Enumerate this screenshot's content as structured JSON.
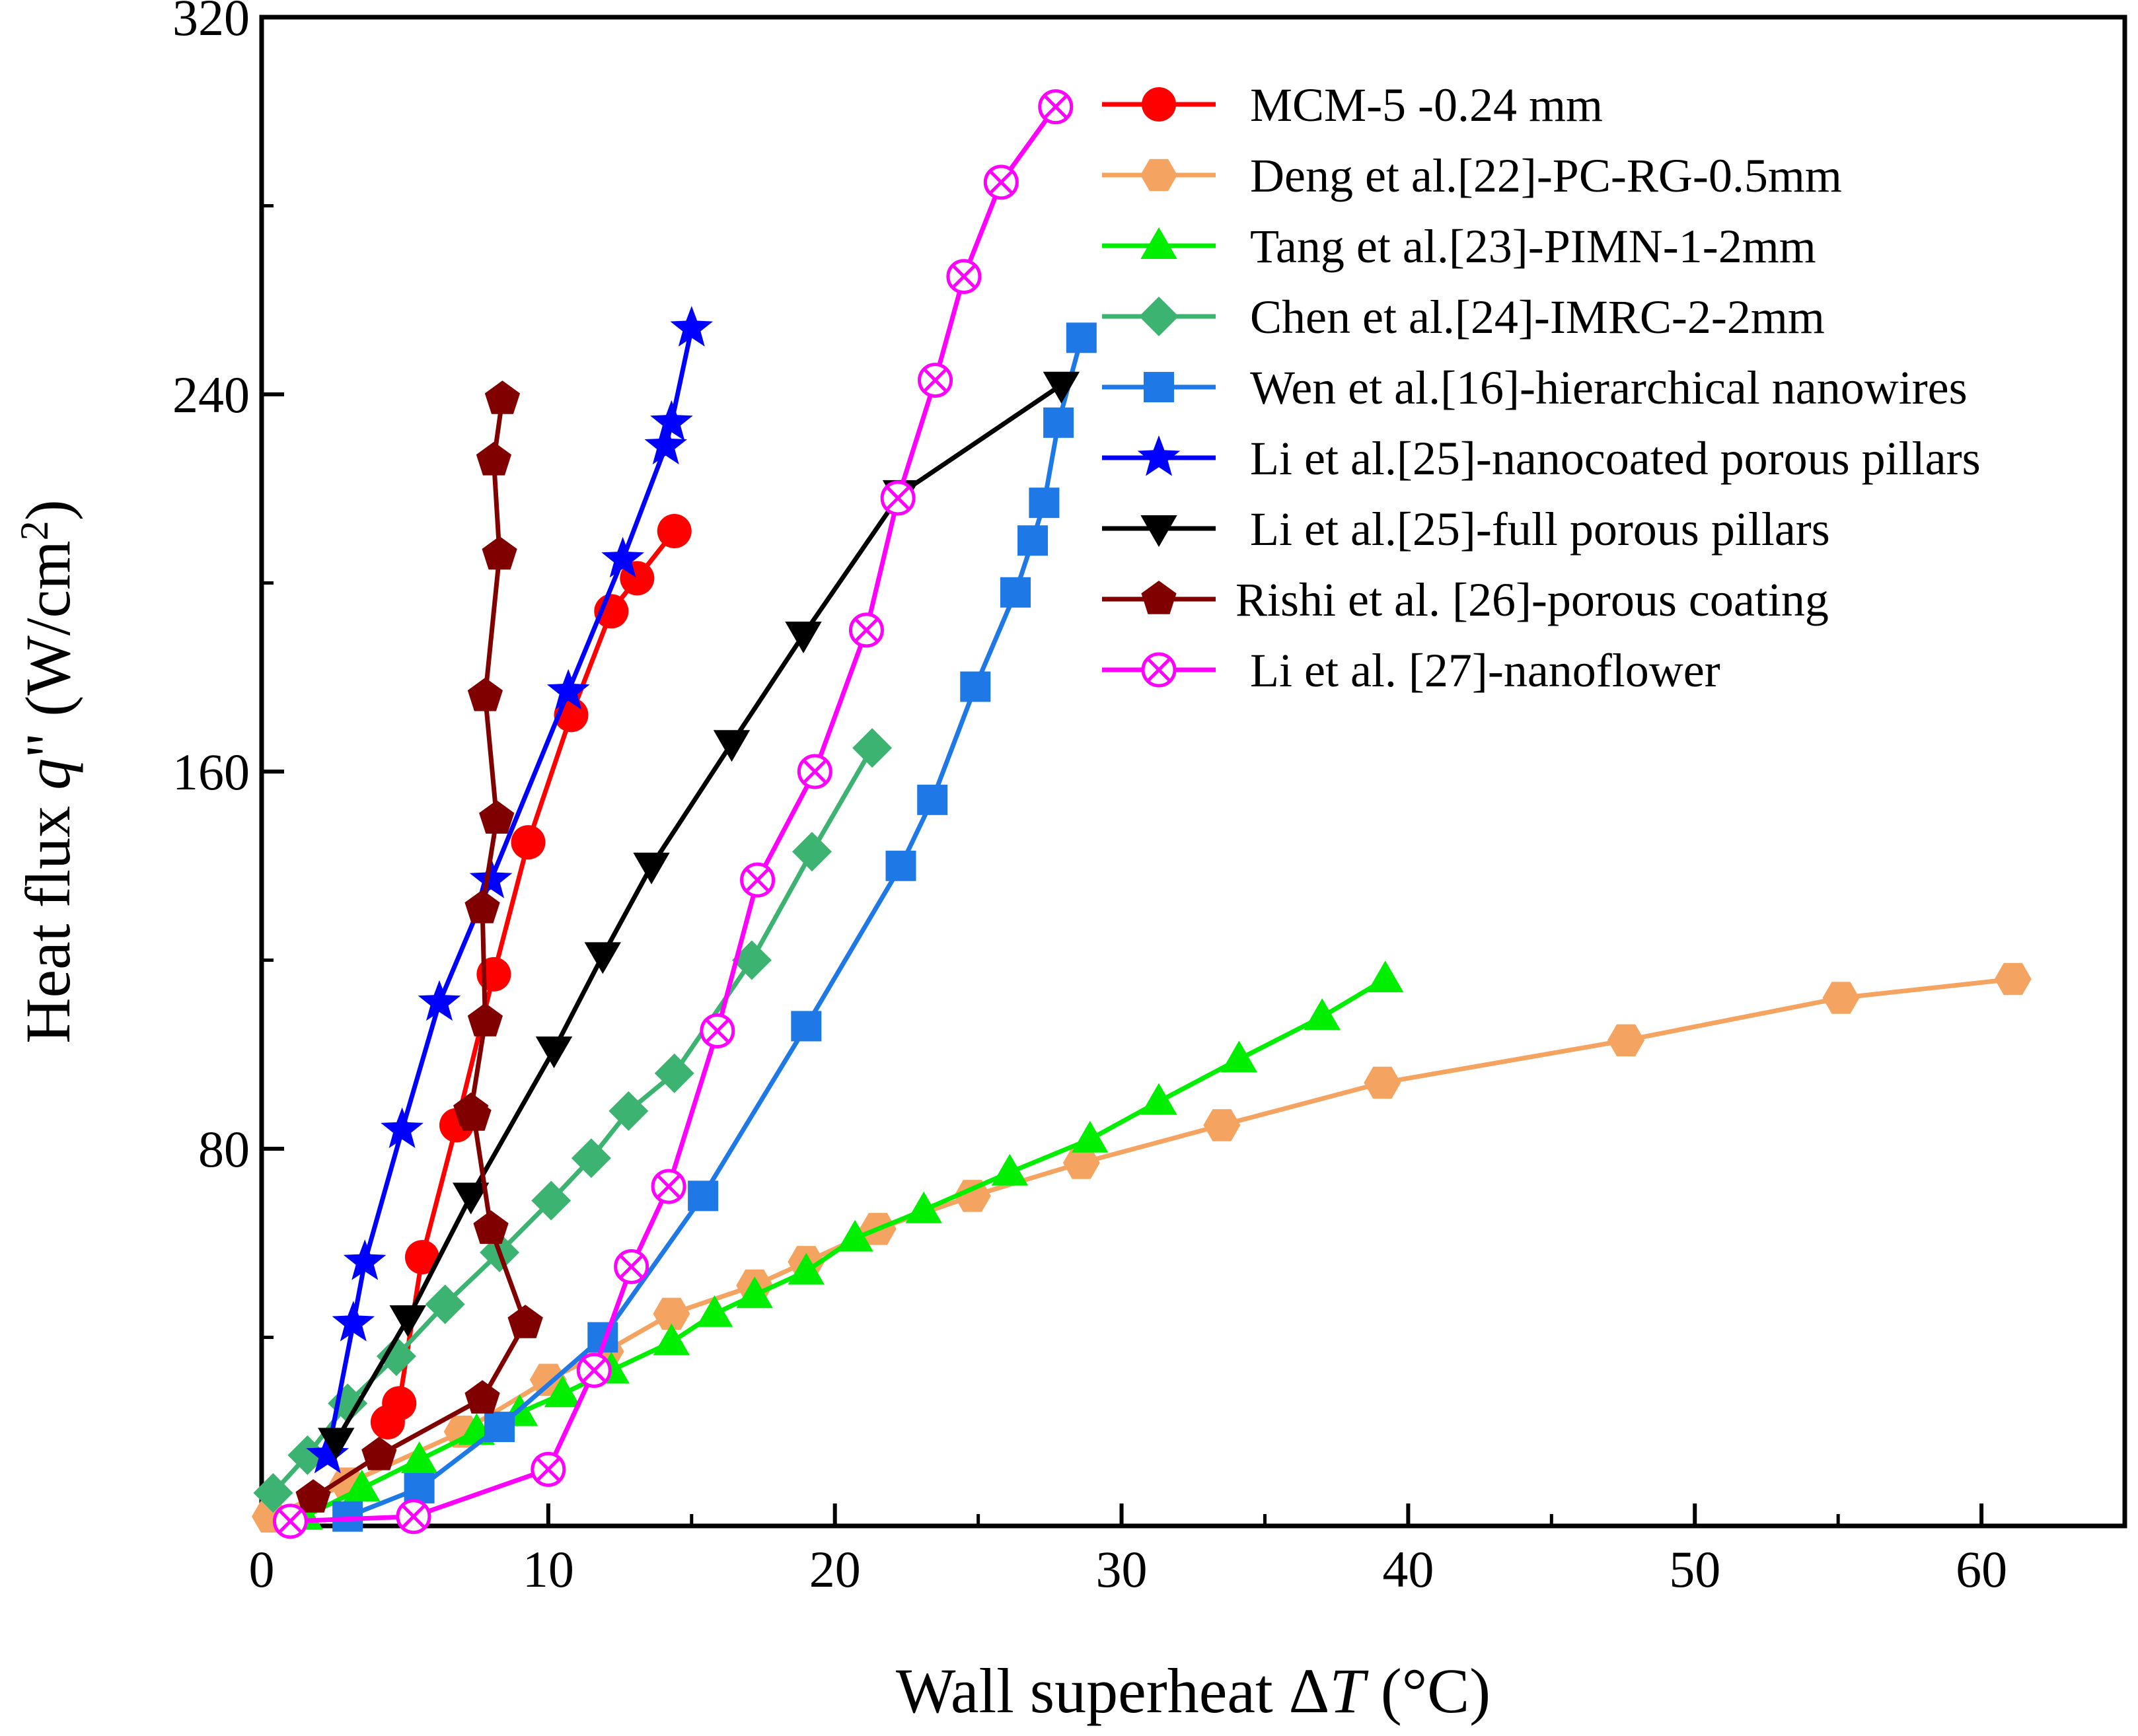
{
  "chart_data": {
    "type": "line",
    "title": "",
    "xlabel": {
      "prefix": "Wall superheat ",
      "delta": "Δ",
      "var": "T",
      "suffix": " (°C)"
    },
    "ylabel": {
      "prefix": "Heat flux ",
      "var": "q",
      "mid": "\" (W/cm",
      "sup": "2",
      "suffix": ")"
    },
    "xlim": [
      0,
      65
    ],
    "ylim": [
      0,
      320
    ],
    "xticks": [
      0,
      10,
      20,
      30,
      40,
      50,
      60
    ],
    "xtick_labels": [
      "0",
      "10",
      "20",
      "30",
      "40",
      "50",
      "60"
    ],
    "yticks": [
      80,
      160,
      240,
      320
    ],
    "ytick_labels": [
      "80",
      "160",
      "240",
      "320"
    ],
    "grid": false,
    "legend_position": "top-right",
    "series": [
      {
        "name": "MCM-5 -0.24 mm",
        "color": "#ff0000",
        "marker": "circle",
        "x": [
          4.4,
          4.8,
          5.6,
          6.8,
          8.1,
          9.3,
          10.8,
          12.2,
          13.1,
          14.4
        ],
        "y": [
          22,
          26,
          57,
          85,
          117,
          145,
          172,
          194,
          201,
          211
        ]
      },
      {
        "name": "Deng et al.[22]-PC-RG-0.5mm",
        "color": "#f4a460",
        "marker": "hexagon",
        "x": [
          0.3,
          3,
          7,
          10,
          12,
          14.3,
          17.2,
          19,
          21.5,
          24.8,
          28.6,
          33.5,
          39.1,
          47.6,
          55.1,
          61.1
        ],
        "y": [
          2,
          9,
          20,
          31,
          37,
          45,
          51,
          56,
          63,
          70,
          77,
          85,
          94,
          103,
          112,
          116
        ]
      },
      {
        "name": "Tang et al.[23]-PIMN-1-2mm",
        "color": "#00ee00",
        "marker": "triangle-up",
        "x": [
          1.5,
          3.5,
          5.5,
          7.5,
          9,
          10.5,
          12.2,
          14.3,
          15.8,
          17.2,
          19,
          20.7,
          23.1,
          26.1,
          28.9,
          31.3,
          34.1,
          37,
          39.2
        ],
        "y": [
          2,
          8,
          14,
          20,
          24,
          28,
          33,
          39,
          45,
          49,
          54,
          61,
          67,
          75,
          82,
          90,
          99,
          108,
          116
        ]
      },
      {
        "name": "Chen et al.[24]-IMRC-2-2mm",
        "color": "#3cb371",
        "marker": "diamond",
        "x": [
          0.4,
          1.6,
          3,
          4.7,
          6.4,
          8.3,
          10.1,
          11.5,
          12.8,
          14.4,
          17.1,
          19.2,
          21.3
        ],
        "y": [
          7,
          15,
          26,
          36,
          47,
          58,
          69,
          78,
          88,
          96,
          120,
          143,
          165
        ]
      },
      {
        "name": "Wen et al.[16]-hierarchical nanowires",
        "color": "#1e78e6",
        "marker": "square",
        "x": [
          3,
          5.5,
          8.3,
          11.9,
          15.4,
          19,
          22.3,
          23.4,
          24.9,
          26.3,
          26.9,
          27.3,
          27.8,
          28.6
        ],
        "y": [
          2,
          8,
          21,
          40,
          70,
          106,
          140,
          154,
          178,
          198,
          209,
          217,
          234,
          252
        ]
      },
      {
        "name": "Li et al.[25]-nanocoated porous pillars",
        "color": "#0000ff",
        "marker": "star",
        "x": [
          2.3,
          3.2,
          3.6,
          4.9,
          6.2,
          8,
          10.7,
          12.6,
          14.1,
          14.3,
          15
        ],
        "y": [
          15,
          43,
          56,
          84,
          111,
          137,
          177,
          205,
          229,
          234,
          254
        ]
      },
      {
        "name": "Li et al.[25]-full porous pillars",
        "color": "#000000",
        "marker": "triangle-down",
        "x": [
          2.6,
          5.1,
          7.3,
          10.2,
          11.9,
          13.6,
          16.4,
          18.9,
          22.3,
          27.9
        ],
        "y": [
          18,
          44,
          70,
          101,
          121,
          140,
          166,
          189,
          219,
          242
        ]
      },
      {
        "name": "Rishi et al. [26]-porous coating",
        "color": "#800000",
        "marker": "pentagon",
        "x": [
          1.8,
          4.1,
          7.7,
          9.2,
          8,
          7.4,
          7.3,
          7.8,
          7.7,
          8.2,
          7.8,
          8.3,
          8.1,
          8.4
        ],
        "y": [
          6,
          15,
          27,
          43,
          63,
          87,
          88,
          107,
          131,
          150,
          176,
          206,
          226,
          239
        ]
      },
      {
        "name": "Li et al. [27]-nanoflower",
        "color": "#ff00ff",
        "marker": "circle-x",
        "x": [
          1,
          5.3,
          10,
          11.6,
          12.9,
          14.2,
          15.9,
          17.3,
          19.3,
          21.1,
          22.2,
          23.5,
          24.5,
          25.8,
          27.7
        ],
        "y": [
          1,
          2,
          12,
          33,
          55,
          72,
          105,
          137,
          160,
          190,
          218,
          243,
          265,
          285,
          301
        ]
      }
    ]
  }
}
